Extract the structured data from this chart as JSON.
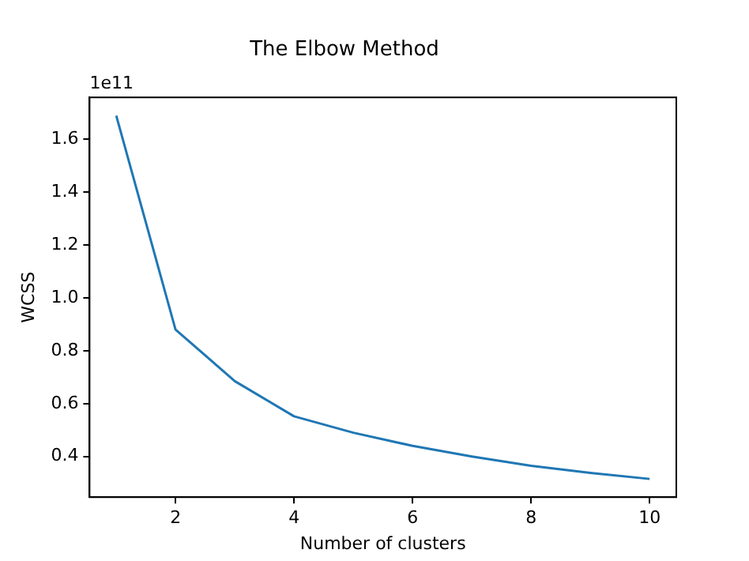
{
  "chart_data": {
    "type": "line",
    "title": "The Elbow Method",
    "xlabel": "Number of clusters",
    "ylabel": "WCSS",
    "x": [
      1,
      2,
      3,
      4,
      5,
      6,
      7,
      8,
      9,
      10
    ],
    "series": [
      {
        "color": "#1f77b4",
        "values": [
          1.69,
          0.88,
          0.685,
          0.552,
          0.49,
          0.44,
          0.4,
          0.365,
          0.338,
          0.315
        ]
      }
    ],
    "xlim": [
      0.55,
      10.45
    ],
    "xticks": [
      2,
      4,
      6,
      8,
      10
    ],
    "ylim": [
      0.246,
      1.759
    ],
    "yticks": [
      0.4,
      0.6,
      0.8,
      {
        "value": 1,
        "label": "1.0"
      },
      1.2,
      1.4,
      1.6
    ],
    "annotations": [
      "1e11"
    ],
    "grid": false,
    "legend": false,
    "marker": "none",
    "line_style": "solid"
  }
}
